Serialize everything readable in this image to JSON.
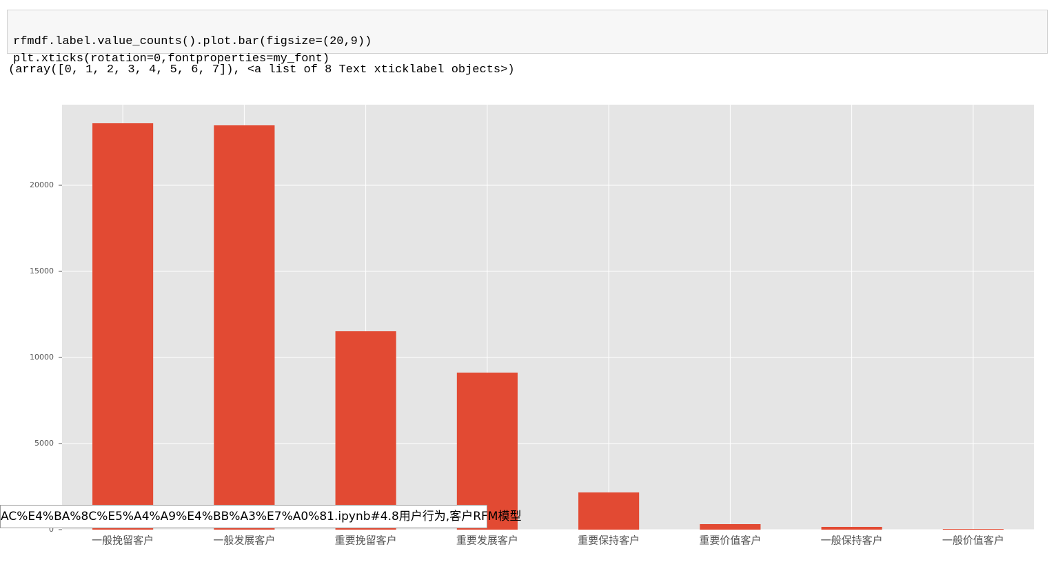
{
  "code": [
    "rfmdf.label.value_counts().plot.bar(figsize=(20,9))",
    "plt.xticks(rotation=0,fontproperties=my_font)"
  ],
  "output": "(array([0, 1, 2, 3, 4, 5, 6, 7]), <a list of 8 Text xticklabel objects>)",
  "chart_data": {
    "type": "bar",
    "categories": [
      "一般挽留客户",
      "一般发展客户",
      "重要挽留客户",
      "重要发展客户",
      "重要保持客户",
      "重要价值客户",
      "一般保持客户",
      "一般价值客户"
    ],
    "values": [
      23600,
      23480,
      11520,
      9120,
      2160,
      320,
      160,
      40
    ],
    "color": "#e24a33",
    "ylim": [
      0,
      24680
    ],
    "yticks": [
      0,
      5000,
      10000,
      15000,
      20000
    ],
    "grid": true
  },
  "status_url": "AC%E4%BA%8C%E5%A4%A9%E4%BB%A3%E7%A0%81.ipynb#4.8用户行为,客户RFM模型"
}
